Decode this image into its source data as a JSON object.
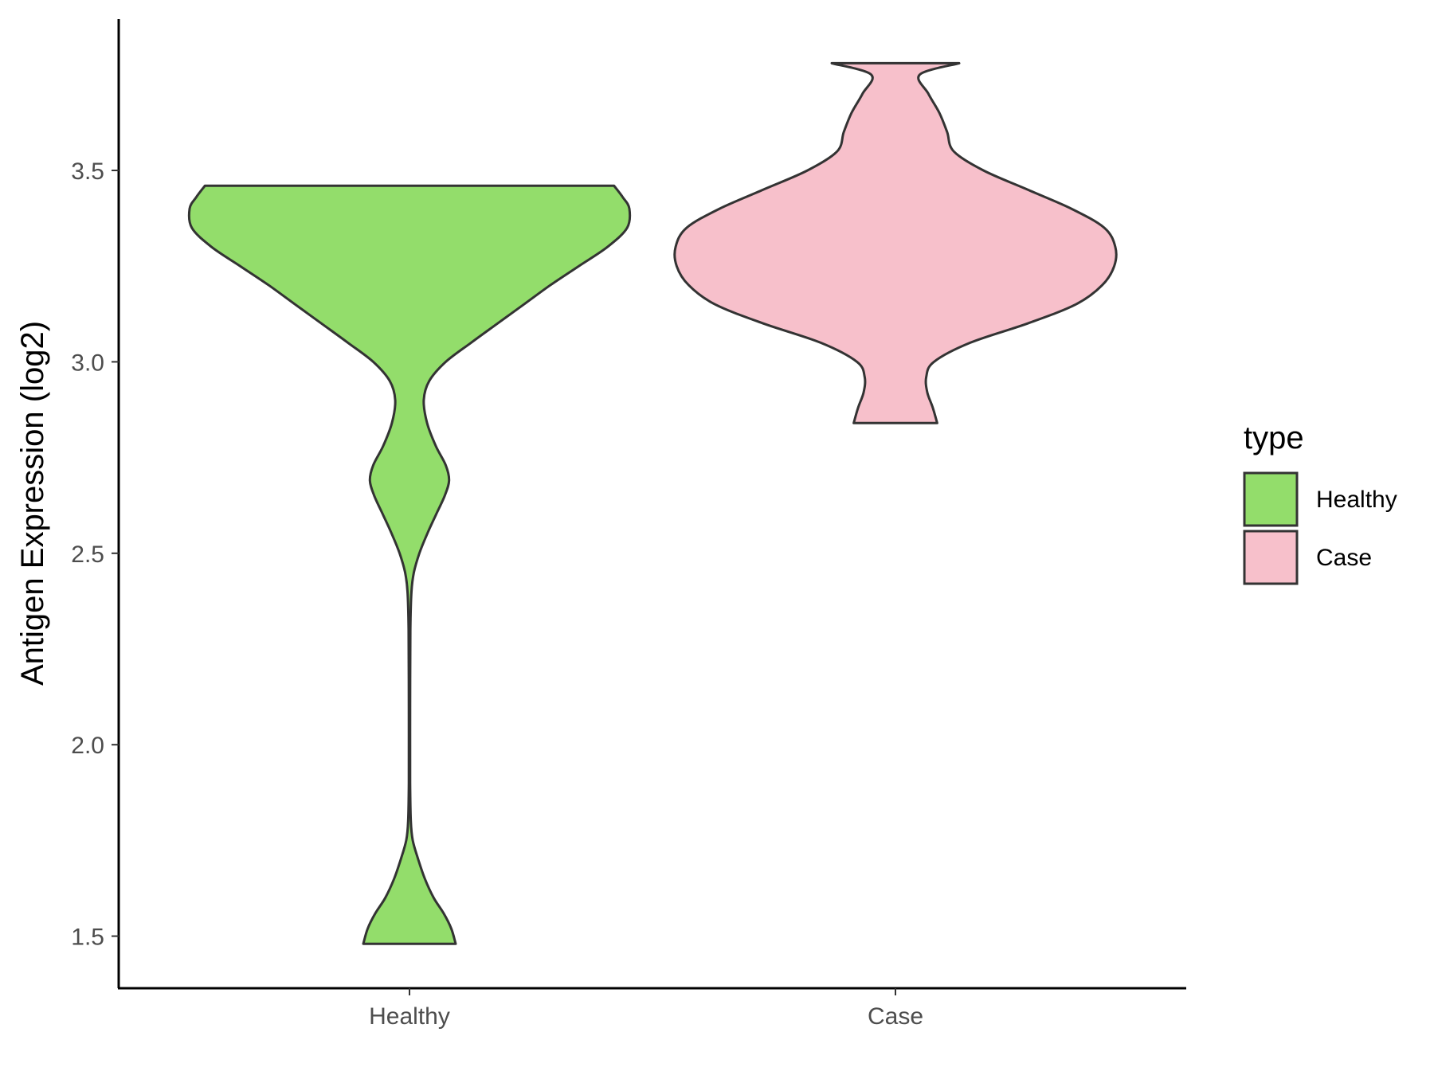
{
  "chart_data": {
    "type": "violin",
    "title": "",
    "xlabel": "",
    "ylabel": "Antigen Expression (log2)",
    "ylim": [
      1.37,
      3.9
    ],
    "yticks": [
      "1.5",
      "2.0",
      "2.5",
      "3.0",
      "3.5"
    ],
    "categories": [
      "Healthy",
      "Case"
    ],
    "grid": false,
    "series": [
      {
        "name": "Healthy",
        "color": "#93DD6B",
        "range": [
          1.48,
          3.46
        ],
        "density_profile": [
          [
            1.48,
            0.21
          ],
          [
            1.52,
            0.19
          ],
          [
            1.56,
            0.155
          ],
          [
            1.6,
            0.11
          ],
          [
            1.65,
            0.07
          ],
          [
            1.7,
            0.04
          ],
          [
            1.75,
            0.015
          ],
          [
            1.8,
            0.006
          ],
          [
            1.9,
            0.003
          ],
          [
            2.1,
            0.003
          ],
          [
            2.3,
            0.004
          ],
          [
            2.4,
            0.009
          ],
          [
            2.45,
            0.02
          ],
          [
            2.5,
            0.045
          ],
          [
            2.55,
            0.08
          ],
          [
            2.6,
            0.12
          ],
          [
            2.65,
            0.16
          ],
          [
            2.69,
            0.18
          ],
          [
            2.73,
            0.165
          ],
          [
            2.78,
            0.12
          ],
          [
            2.84,
            0.08
          ],
          [
            2.9,
            0.065
          ],
          [
            2.95,
            0.09
          ],
          [
            3.0,
            0.165
          ],
          [
            3.05,
            0.28
          ],
          [
            3.1,
            0.4
          ],
          [
            3.15,
            0.52
          ],
          [
            3.2,
            0.64
          ],
          [
            3.25,
            0.77
          ],
          [
            3.3,
            0.9
          ],
          [
            3.35,
            0.99
          ],
          [
            3.4,
            1.0
          ],
          [
            3.43,
            0.97
          ],
          [
            3.46,
            0.93
          ]
        ]
      },
      {
        "name": "Case",
        "color": "#F7C0CB",
        "range": [
          2.84,
          3.78
        ],
        "density_profile": [
          [
            2.84,
            0.19
          ],
          [
            2.88,
            0.17
          ],
          [
            2.92,
            0.145
          ],
          [
            2.96,
            0.14
          ],
          [
            3.0,
            0.175
          ],
          [
            3.05,
            0.34
          ],
          [
            3.1,
            0.6
          ],
          [
            3.15,
            0.82
          ],
          [
            3.2,
            0.94
          ],
          [
            3.25,
            0.995
          ],
          [
            3.3,
            1.0
          ],
          [
            3.35,
            0.95
          ],
          [
            3.4,
            0.8
          ],
          [
            3.45,
            0.6
          ],
          [
            3.5,
            0.4
          ],
          [
            3.55,
            0.265
          ],
          [
            3.6,
            0.235
          ],
          [
            3.65,
            0.2
          ],
          [
            3.7,
            0.15
          ],
          [
            3.75,
            0.11
          ],
          [
            3.78,
            0.29
          ]
        ]
      }
    ],
    "legend": {
      "title": "type",
      "placement": "right",
      "entries": [
        "Healthy",
        "Case"
      ]
    }
  }
}
